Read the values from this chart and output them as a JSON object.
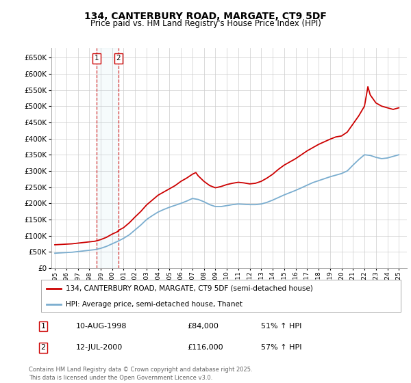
{
  "title": "134, CANTERBURY ROAD, MARGATE, CT9 5DF",
  "subtitle": "Price paid vs. HM Land Registry's House Price Index (HPI)",
  "legend_line1": "134, CANTERBURY ROAD, MARGATE, CT9 5DF (semi-detached house)",
  "legend_line2": "HPI: Average price, semi-detached house, Thanet",
  "transactions": [
    {
      "num": 1,
      "date": "10-AUG-1998",
      "price": "£84,000",
      "hpi": "51% ↑ HPI",
      "year": 1998.62
    },
    {
      "num": 2,
      "date": "12-JUL-2000",
      "price": "£116,000",
      "hpi": "57% ↑ HPI",
      "year": 2000.53
    }
  ],
  "footer": "Contains HM Land Registry data © Crown copyright and database right 2025.\nThis data is licensed under the Open Government Licence v3.0.",
  "red_color": "#cc0000",
  "blue_color": "#7aadcf",
  "dashed_color": "#cc0000",
  "background_color": "#ffffff",
  "grid_color": "#cccccc",
  "ylim": [
    0,
    680000
  ],
  "yticks": [
    0,
    50000,
    100000,
    150000,
    200000,
    250000,
    300000,
    350000,
    400000,
    450000,
    500000,
    550000,
    600000,
    650000
  ],
  "xlim_start": 1994.7,
  "xlim_end": 2025.7,
  "red_x": [
    1995.0,
    1995.5,
    1996.0,
    1996.5,
    1997.0,
    1997.5,
    1998.0,
    1998.5,
    1998.62,
    1999.0,
    1999.5,
    2000.0,
    2000.5,
    2000.53,
    2001.0,
    2001.5,
    2002.0,
    2002.5,
    2003.0,
    2003.5,
    2004.0,
    2004.5,
    2005.0,
    2005.5,
    2006.0,
    2006.5,
    2007.0,
    2007.3,
    2007.5,
    2008.0,
    2008.5,
    2009.0,
    2009.5,
    2010.0,
    2010.5,
    2011.0,
    2011.5,
    2012.0,
    2012.5,
    2013.0,
    2013.5,
    2014.0,
    2014.5,
    2015.0,
    2015.5,
    2016.0,
    2016.5,
    2017.0,
    2017.5,
    2018.0,
    2018.5,
    2019.0,
    2019.5,
    2020.0,
    2020.5,
    2021.0,
    2021.5,
    2022.0,
    2022.3,
    2022.5,
    2023.0,
    2023.5,
    2024.0,
    2024.5,
    2025.0
  ],
  "red_y": [
    72000,
    73000,
    74000,
    75000,
    77000,
    79000,
    81000,
    83000,
    84000,
    88000,
    95000,
    105000,
    113000,
    116000,
    125000,
    140000,
    158000,
    175000,
    195000,
    210000,
    225000,
    235000,
    245000,
    255000,
    268000,
    278000,
    290000,
    295000,
    285000,
    268000,
    255000,
    248000,
    252000,
    258000,
    262000,
    265000,
    263000,
    260000,
    262000,
    268000,
    278000,
    290000,
    305000,
    318000,
    328000,
    338000,
    350000,
    362000,
    372000,
    382000,
    390000,
    398000,
    405000,
    408000,
    420000,
    445000,
    470000,
    500000,
    560000,
    535000,
    510000,
    500000,
    495000,
    490000,
    495000
  ],
  "blue_x": [
    1995.0,
    1995.5,
    1996.0,
    1996.5,
    1997.0,
    1997.5,
    1998.0,
    1998.5,
    1999.0,
    1999.5,
    2000.0,
    2000.5,
    2001.0,
    2001.5,
    2002.0,
    2002.5,
    2003.0,
    2003.5,
    2004.0,
    2004.5,
    2005.0,
    2005.5,
    2006.0,
    2006.5,
    2007.0,
    2007.5,
    2008.0,
    2008.5,
    2009.0,
    2009.5,
    2010.0,
    2010.5,
    2011.0,
    2011.5,
    2012.0,
    2012.5,
    2013.0,
    2013.5,
    2014.0,
    2014.5,
    2015.0,
    2015.5,
    2016.0,
    2016.5,
    2017.0,
    2017.5,
    2018.0,
    2018.5,
    2019.0,
    2019.5,
    2020.0,
    2020.5,
    2021.0,
    2021.5,
    2022.0,
    2022.5,
    2023.0,
    2023.5,
    2024.0,
    2024.5,
    2025.0
  ],
  "blue_y": [
    46000,
    47000,
    48000,
    49000,
    51000,
    53000,
    55000,
    57000,
    61000,
    67000,
    75000,
    83000,
    92000,
    103000,
    118000,
    133000,
    150000,
    162000,
    173000,
    181000,
    188000,
    194000,
    200000,
    207000,
    215000,
    212000,
    205000,
    196000,
    190000,
    190000,
    193000,
    196000,
    198000,
    197000,
    196000,
    196000,
    198000,
    203000,
    210000,
    218000,
    226000,
    233000,
    240000,
    248000,
    256000,
    264000,
    270000,
    276000,
    282000,
    287000,
    292000,
    300000,
    318000,
    335000,
    350000,
    348000,
    342000,
    338000,
    340000,
    345000,
    350000
  ]
}
